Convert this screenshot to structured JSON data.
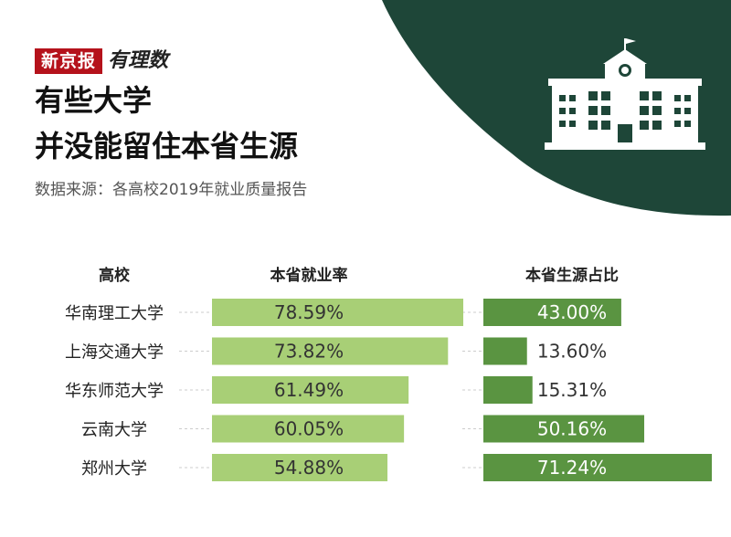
{
  "header": {
    "brand_red": "新京报",
    "brand_script": "有理数",
    "title_line1": "有些大学",
    "title_line2": "并没能留住本省生源",
    "subtitle": "数据来源：各高校2019年就业质量报告"
  },
  "colors": {
    "dark_green": "#1e4638",
    "light_green_bar": "#a8cf76",
    "dark_green_bar": "#5a9441",
    "brand_red": "#b5121b"
  },
  "chart_data": {
    "type": "bar",
    "orientation": "horizontal",
    "category_header": "高校",
    "categories": [
      "华南理工大学",
      "上海交通大学",
      "华东师范大学",
      "云南大学",
      "郑州大学"
    ],
    "series": [
      {
        "name": "本省就业率",
        "values": [
          78.59,
          73.82,
          61.49,
          60.05,
          54.88
        ],
        "labels": [
          "78.59%",
          "73.82%",
          "61.49%",
          "60.05%",
          "54.88%"
        ],
        "color": "#a8cf76"
      },
      {
        "name": "本省生源占比",
        "values": [
          43.0,
          13.6,
          15.31,
          50.16,
          71.24
        ],
        "labels": [
          "43.00%",
          "13.60%",
          "15.31%",
          "50.16%",
          "71.24%"
        ],
        "color": "#5a9441"
      }
    ]
  }
}
